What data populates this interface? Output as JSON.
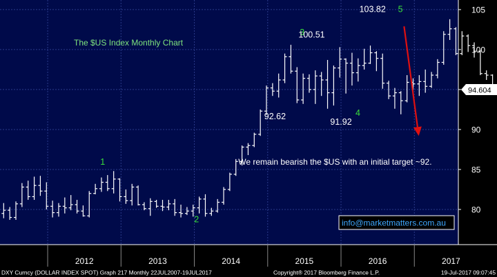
{
  "colors": {
    "background": "#000a4a",
    "axis_panel": "#000000",
    "grid": "#2a3a8a",
    "bars": "#ffffff",
    "wave_label": "#39e039",
    "value_label": "#ffffff",
    "title": "#7ee37e",
    "arrow": "#e01010",
    "email": "#3fa8ff",
    "footer_text": "#ffffff"
  },
  "chart_data": {
    "type": "ohlc",
    "title": "The $US Index Monthly Chart",
    "x_labels": [
      "2012",
      "2013",
      "2014",
      "2015",
      "2016",
      "2017"
    ],
    "y_ticks": [
      80,
      85,
      90,
      95,
      100,
      105
    ],
    "ylim": [
      75.6,
      106.2
    ],
    "grid": true,
    "last_value": "94.604",
    "bars": [
      {
        "o": 79.5,
        "h": 80.8,
        "l": 78.9,
        "c": 79.9
      },
      {
        "o": 79.9,
        "h": 80.3,
        "l": 78.7,
        "c": 79.0
      },
      {
        "o": 79.0,
        "h": 81.0,
        "l": 78.7,
        "c": 80.7
      },
      {
        "o": 80.7,
        "h": 83.3,
        "l": 80.3,
        "c": 82.8
      },
      {
        "o": 82.8,
        "h": 83.6,
        "l": 81.2,
        "c": 81.6
      },
      {
        "o": 81.6,
        "h": 84.1,
        "l": 81.2,
        "c": 83.0
      },
      {
        "o": 83.0,
        "h": 84.2,
        "l": 81.7,
        "c": 82.3
      },
      {
        "o": 82.3,
        "h": 83.4,
        "l": 80.0,
        "c": 80.4
      },
      {
        "o": 80.4,
        "h": 81.1,
        "l": 79.0,
        "c": 79.6
      },
      {
        "o": 79.6,
        "h": 80.8,
        "l": 79.1,
        "c": 80.4
      },
      {
        "o": 80.4,
        "h": 81.5,
        "l": 79.5,
        "c": 80.2
      },
      {
        "o": 80.2,
        "h": 81.8,
        "l": 79.9,
        "c": 80.6
      },
      {
        "o": 80.6,
        "h": 81.2,
        "l": 79.5,
        "c": 79.8
      },
      {
        "o": 79.8,
        "h": 80.5,
        "l": 79.1,
        "c": 79.2
      },
      {
        "o": 79.2,
        "h": 82.3,
        "l": 79.0,
        "c": 82.0
      },
      {
        "o": 82.0,
        "h": 83.2,
        "l": 81.9,
        "c": 82.6
      },
      {
        "o": 82.6,
        "h": 84.0,
        "l": 82.2,
        "c": 83.4
      },
      {
        "o": 83.4,
        "h": 84.3,
        "l": 82.3,
        "c": 82.6
      },
      {
        "o": 82.6,
        "h": 84.8,
        "l": 82.0,
        "c": 83.8
      },
      {
        "o": 83.8,
        "h": 83.9,
        "l": 81.0,
        "c": 81.6
      },
      {
        "o": 81.6,
        "h": 82.5,
        "l": 80.7,
        "c": 81.1
      },
      {
        "o": 81.1,
        "h": 83.2,
        "l": 80.5,
        "c": 82.8
      },
      {
        "o": 82.8,
        "h": 83.0,
        "l": 80.5,
        "c": 80.6
      },
      {
        "o": 80.6,
        "h": 80.9,
        "l": 79.9,
        "c": 80.1
      },
      {
        "o": 80.1,
        "h": 81.4,
        "l": 79.2,
        "c": 81.0
      },
      {
        "o": 81.0,
        "h": 81.2,
        "l": 80.2,
        "c": 80.4
      },
      {
        "o": 80.4,
        "h": 81.2,
        "l": 79.8,
        "c": 80.3
      },
      {
        "o": 80.3,
        "h": 81.2,
        "l": 79.9,
        "c": 80.7
      },
      {
        "o": 80.7,
        "h": 81.3,
        "l": 79.2,
        "c": 79.6
      },
      {
        "o": 79.6,
        "h": 80.6,
        "l": 79.0,
        "c": 79.5
      },
      {
        "o": 79.5,
        "h": 80.3,
        "l": 79.3,
        "c": 79.8
      },
      {
        "o": 79.8,
        "h": 80.6,
        "l": 79.1,
        "c": 80.2
      },
      {
        "o": 80.2,
        "h": 81.6,
        "l": 79.5,
        "c": 81.3
      },
      {
        "o": 81.3,
        "h": 81.9,
        "l": 79.1,
        "c": 79.5
      },
      {
        "o": 79.5,
        "h": 80.2,
        "l": 79.2,
        "c": 79.8
      },
      {
        "o": 79.8,
        "h": 81.3,
        "l": 79.6,
        "c": 80.9
      },
      {
        "o": 80.9,
        "h": 82.8,
        "l": 80.6,
        "c": 82.5
      },
      {
        "o": 82.5,
        "h": 84.6,
        "l": 82.3,
        "c": 84.4
      },
      {
        "o": 84.4,
        "h": 86.3,
        "l": 84.2,
        "c": 86.0
      },
      {
        "o": 86.0,
        "h": 88.0,
        "l": 85.5,
        "c": 87.8
      },
      {
        "o": 87.8,
        "h": 88.3,
        "l": 86.8,
        "c": 88.0
      },
      {
        "o": 88.0,
        "h": 89.6,
        "l": 87.8,
        "c": 89.4
      },
      {
        "o": 89.4,
        "h": 92.5,
        "l": 89.2,
        "c": 92.3
      },
      {
        "o": 92.3,
        "h": 95.5,
        "l": 91.8,
        "c": 95.2
      },
      {
        "o": 95.2,
        "h": 95.8,
        "l": 94.2,
        "c": 94.8
      },
      {
        "o": 94.8,
        "h": 97.0,
        "l": 94.0,
        "c": 96.2
      },
      {
        "o": 96.2,
        "h": 99.5,
        "l": 95.8,
        "c": 99.1
      },
      {
        "o": 99.1,
        "h": 100.6,
        "l": 97.0,
        "c": 97.3
      },
      {
        "o": 97.3,
        "h": 97.8,
        "l": 93.3,
        "c": 93.7
      },
      {
        "o": 93.7,
        "h": 97.0,
        "l": 93.2,
        "c": 96.4
      },
      {
        "o": 96.4,
        "h": 96.9,
        "l": 94.6,
        "c": 95.0
      },
      {
        "o": 95.0,
        "h": 97.4,
        "l": 93.2,
        "c": 96.7
      },
      {
        "o": 96.7,
        "h": 97.2,
        "l": 94.2,
        "c": 96.2
      },
      {
        "o": 96.2,
        "h": 98.7,
        "l": 92.6,
        "c": 94.6
      },
      {
        "o": 94.6,
        "h": 98.0,
        "l": 93.0,
        "c": 97.7
      },
      {
        "o": 97.7,
        "h": 100.3,
        "l": 96.5,
        "c": 98.8
      },
      {
        "o": 98.8,
        "h": 98.9,
        "l": 94.5,
        "c": 98.3
      },
      {
        "o": 98.3,
        "h": 99.6,
        "l": 95.5,
        "c": 97.1
      },
      {
        "o": 97.1,
        "h": 98.9,
        "l": 96.0,
        "c": 98.0
      },
      {
        "o": 98.0,
        "h": 100.1,
        "l": 97.5,
        "c": 98.3
      },
      {
        "o": 98.3,
        "h": 100.5,
        "l": 98.2,
        "c": 99.6
      },
      {
        "o": 99.6,
        "h": 99.8,
        "l": 97.3,
        "c": 98.9
      },
      {
        "o": 98.9,
        "h": 99.5,
        "l": 95.1,
        "c": 95.8
      },
      {
        "o": 95.8,
        "h": 96.1,
        "l": 93.8,
        "c": 94.2
      },
      {
        "o": 94.2,
        "h": 95.2,
        "l": 92.6,
        "c": 94.6
      },
      {
        "o": 94.6,
        "h": 94.8,
        "l": 91.9,
        "c": 93.6
      },
      {
        "o": 93.6,
        "h": 96.8,
        "l": 93.4,
        "c": 95.9
      },
      {
        "o": 95.9,
        "h": 96.4,
        "l": 94.9,
        "c": 95.7
      },
      {
        "o": 95.7,
        "h": 96.8,
        "l": 94.2,
        "c": 96.0
      },
      {
        "o": 96.0,
        "h": 97.5,
        "l": 94.6,
        "c": 95.4
      },
      {
        "o": 95.4,
        "h": 97.2,
        "l": 95.2,
        "c": 96.8
      },
      {
        "o": 96.8,
        "h": 98.8,
        "l": 96.4,
        "c": 98.4
      },
      {
        "o": 98.4,
        "h": 102.3,
        "l": 98.1,
        "c": 101.9
      },
      {
        "o": 101.9,
        "h": 103.8,
        "l": 101.2,
        "c": 102.6
      },
      {
        "o": 102.6,
        "h": 102.8,
        "l": 99.3,
        "c": 99.5
      },
      {
        "o": 99.5,
        "h": 102.3,
        "l": 99.3,
        "c": 101.7
      },
      {
        "o": 101.7,
        "h": 101.9,
        "l": 99.7,
        "c": 100.5
      },
      {
        "o": 100.5,
        "h": 100.9,
        "l": 99.0,
        "c": 99.8
      },
      {
        "o": 99.8,
        "h": 99.9,
        "l": 96.8,
        "c": 97.0
      },
      {
        "o": 97.0,
        "h": 97.4,
        "l": 96.2,
        "c": 96.8
      },
      {
        "o": 96.8,
        "h": 96.9,
        "l": 94.4,
        "c": 94.6
      }
    ],
    "annotations": [
      {
        "text": "1",
        "kind": "wave",
        "x": 2012.75,
        "y": 85.6
      },
      {
        "text": "2",
        "kind": "wave",
        "x": 2014.03,
        "y": 78.4
      },
      {
        "text": "3",
        "kind": "wave",
        "x": 2015.47,
        "y": 101.8
      },
      {
        "text": "4",
        "kind": "wave",
        "x": 2016.23,
        "y": 91.7
      },
      {
        "text": "5",
        "kind": "wave",
        "x": 2016.81,
        "y": 104.7
      },
      {
        "text": "100.51",
        "kind": "value",
        "x": 2015.6,
        "y": 101.5
      },
      {
        "text": "92.62",
        "kind": "value",
        "x": 2015.1,
        "y": 91.3
      },
      {
        "text": "91.92",
        "kind": "value",
        "x": 2016.0,
        "y": 90.6
      },
      {
        "text": "103.82",
        "kind": "value",
        "x": 2016.43,
        "y": 104.7
      },
      {
        "text": "We remain bearish the $US with an initial target ~92.",
        "kind": "note",
        "x": 2014.6,
        "y": 85.6
      }
    ],
    "arrow": {
      "from": {
        "x": 2016.86,
        "y": 102.9
      },
      "to": {
        "x": 2017.06,
        "y": 89.2
      }
    },
    "contact": "info@marketmatters.com.au"
  },
  "footer": {
    "left": "DXY Curncy (DOLLAR INDEX SPOT) Graph 217  Monthly 22JUL2007-19JUL2017",
    "center": "Copyright® 2017 Bloomberg Finance L.P.",
    "right": "19-Jul-2017 09:07:45"
  }
}
